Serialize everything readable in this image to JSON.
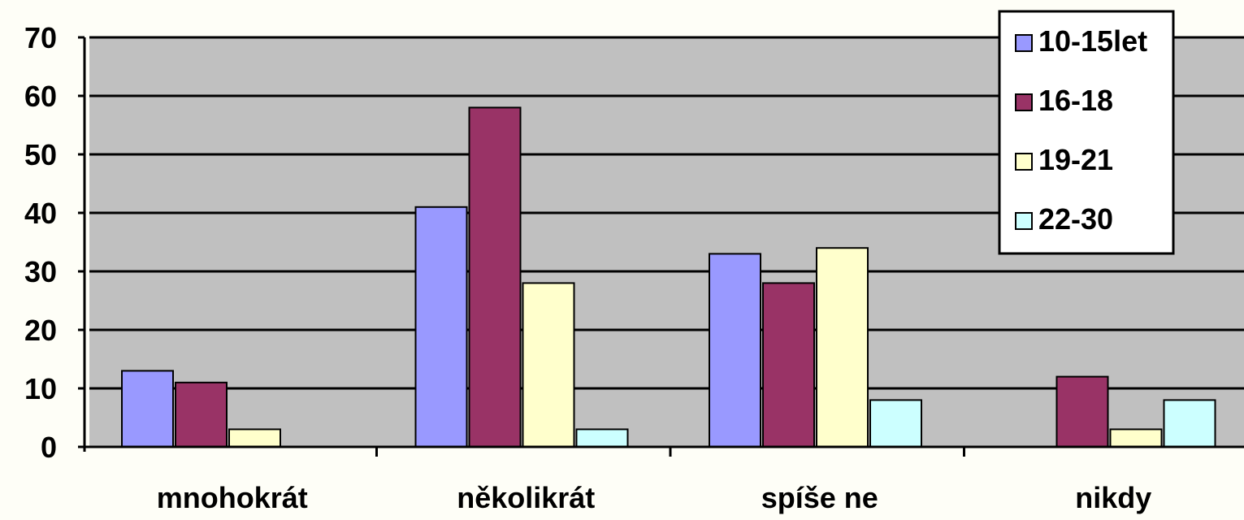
{
  "chart_data": {
    "type": "bar",
    "categories": [
      "mnohokrát",
      "několikrát",
      "spíše ne",
      "nikdy"
    ],
    "series": [
      {
        "name": "10-15let",
        "values": [
          13,
          41,
          33,
          0
        ],
        "color": "#9999ff"
      },
      {
        "name": "16-18",
        "values": [
          11,
          58,
          28,
          12
        ],
        "color": "#993366"
      },
      {
        "name": "19-21",
        "values": [
          3,
          28,
          34,
          3
        ],
        "color": "#ffffcc"
      },
      {
        "name": "22-30",
        "values": [
          0,
          3,
          8,
          8
        ],
        "color": "#ccffff"
      }
    ],
    "ylim": [
      0,
      70
    ],
    "yticks": [
      "0",
      "10",
      "20",
      "30",
      "40",
      "50",
      "60",
      "70"
    ],
    "grid": true,
    "legend_position": "top-right",
    "plot_background": "#c0c0c0"
  }
}
